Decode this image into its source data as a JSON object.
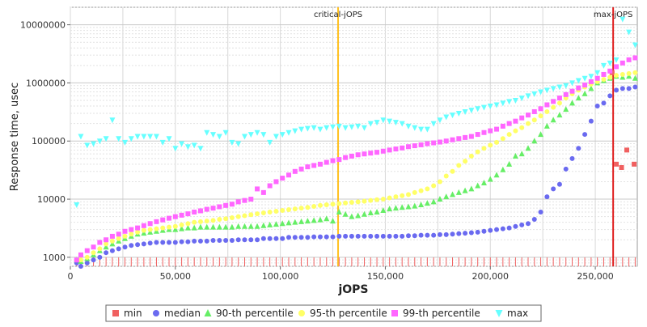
{
  "chart_data": {
    "type": "scatter",
    "title": "",
    "xlabel": "jOPS",
    "ylabel": "Response time, usec",
    "xlim": [
      0,
      270000
    ],
    "ylim": [
      700,
      20000000
    ],
    "yscale": "log",
    "grid": true,
    "legend_position": "bottom",
    "x_ticks": [
      0,
      50000,
      100000,
      150000,
      200000,
      250000
    ],
    "x_tick_labels": [
      "0",
      "50,000",
      "100,000",
      "150,000",
      "200,000",
      "250,000"
    ],
    "y_ticks": [
      1000,
      10000,
      100000,
      1000000,
      10000000
    ],
    "y_tick_labels": [
      "1000",
      "10000",
      "100000",
      "1000000",
      "10000000"
    ],
    "markers": [
      {
        "label": "critical-jOPS",
        "x": 127500,
        "color": "#ffc020"
      },
      {
        "label": "max-jOPS",
        "x": 258500,
        "color": "#e02020"
      }
    ],
    "series": [
      {
        "name": "min",
        "color": "#f06060",
        "symbol": "square",
        "x": [
          258000,
          260000,
          262500,
          265000,
          268500
        ],
        "y": [
          1500000,
          40000,
          35000,
          70000,
          40000
        ]
      },
      {
        "name": "median",
        "color": "#6a6af0",
        "symbol": "circle",
        "x": [
          3000,
          5000,
          8000,
          11000,
          14000,
          17000,
          20000,
          23000,
          26000,
          29000,
          32000,
          35000,
          38000,
          41000,
          44000,
          47000,
          50000,
          53000,
          56000,
          59000,
          62000,
          65000,
          68000,
          71000,
          74000,
          77000,
          80000,
          83000,
          86000,
          89000,
          92000,
          95000,
          98000,
          101000,
          104000,
          107000,
          110000,
          113000,
          116000,
          119000,
          122000,
          125000,
          128000,
          131000,
          134000,
          137000,
          140000,
          143000,
          146000,
          149000,
          152000,
          155000,
          158000,
          161000,
          164000,
          167000,
          170000,
          173000,
          176000,
          179000,
          182000,
          185000,
          188000,
          191000,
          194000,
          197000,
          200000,
          203000,
          206000,
          209000,
          212000,
          215000,
          218000,
          221000,
          224000,
          227000,
          230000,
          233000,
          236000,
          239000,
          242000,
          245000,
          248000,
          251000,
          254000,
          257000,
          260000,
          263000,
          266000,
          269000
        ],
        "y": [
          800,
          700,
          800,
          900,
          1000,
          1200,
          1300,
          1400,
          1500,
          1600,
          1650,
          1700,
          1750,
          1800,
          1800,
          1800,
          1800,
          1850,
          1850,
          1900,
          1900,
          1900,
          1950,
          1950,
          1950,
          1950,
          2000,
          2000,
          2000,
          2000,
          2100,
          2100,
          2100,
          2100,
          2200,
          2200,
          2200,
          2200,
          2250,
          2250,
          2250,
          2250,
          2300,
          2300,
          2300,
          2300,
          2300,
          2300,
          2300,
          2300,
          2300,
          2300,
          2300,
          2350,
          2350,
          2400,
          2400,
          2400,
          2450,
          2450,
          2500,
          2550,
          2600,
          2650,
          2700,
          2800,
          2900,
          3000,
          3100,
          3200,
          3400,
          3600,
          3800,
          4500,
          6000,
          11000,
          15000,
          18000,
          33000,
          50000,
          75000,
          130000,
          220000,
          400000,
          450000,
          600000,
          750000,
          800000,
          800000,
          850000
        ]
      },
      {
        "name": "90-th percentile",
        "color": "#66ee66",
        "symbol": "triangle-up",
        "x": [
          3000,
          5000,
          8000,
          11000,
          14000,
          17000,
          20000,
          23000,
          26000,
          29000,
          32000,
          35000,
          38000,
          41000,
          44000,
          47000,
          50000,
          53000,
          56000,
          59000,
          62000,
          65000,
          68000,
          71000,
          74000,
          77000,
          80000,
          83000,
          86000,
          89000,
          92000,
          95000,
          98000,
          101000,
          104000,
          107000,
          110000,
          113000,
          116000,
          119000,
          122000,
          125000,
          128000,
          131000,
          134000,
          137000,
          140000,
          143000,
          146000,
          149000,
          152000,
          155000,
          158000,
          161000,
          164000,
          167000,
          170000,
          173000,
          176000,
          179000,
          182000,
          185000,
          188000,
          191000,
          194000,
          197000,
          200000,
          203000,
          206000,
          209000,
          212000,
          215000,
          218000,
          221000,
          224000,
          227000,
          230000,
          233000,
          236000,
          239000,
          242000,
          245000,
          248000,
          251000,
          254000,
          257000,
          260000,
          263000,
          266000,
          269000
        ],
        "y": [
          900,
          850,
          950,
          1100,
          1300,
          1500,
          1700,
          1900,
          2100,
          2300,
          2500,
          2600,
          2700,
          2800,
          2900,
          3000,
          3000,
          3100,
          3200,
          3200,
          3300,
          3300,
          3300,
          3300,
          3300,
          3300,
          3400,
          3400,
          3400,
          3400,
          3500,
          3600,
          3700,
          3800,
          3900,
          4000,
          4100,
          4200,
          4300,
          4400,
          4600,
          4200,
          6000,
          5500,
          5000,
          5200,
          5500,
          5800,
          6000,
          6400,
          6800,
          7000,
          7200,
          7400,
          7600,
          8000,
          8500,
          9000,
          10000,
          11000,
          12000,
          13000,
          14000,
          15000,
          17000,
          19000,
          22000,
          26000,
          32000,
          40000,
          55000,
          60000,
          75000,
          100000,
          130000,
          180000,
          230000,
          280000,
          350000,
          450000,
          550000,
          650000,
          800000,
          1000000,
          1100000,
          1200000,
          1300000,
          1250000,
          1300000,
          1200000
        ]
      },
      {
        "name": "95-th percentile",
        "color": "#ffff66",
        "symbol": "circle",
        "x": [
          3000,
          5000,
          8000,
          11000,
          14000,
          17000,
          20000,
          23000,
          26000,
          29000,
          32000,
          35000,
          38000,
          41000,
          44000,
          47000,
          50000,
          53000,
          56000,
          59000,
          62000,
          65000,
          68000,
          71000,
          74000,
          77000,
          80000,
          83000,
          86000,
          89000,
          92000,
          95000,
          98000,
          101000,
          104000,
          107000,
          110000,
          113000,
          116000,
          119000,
          122000,
          125000,
          128000,
          131000,
          134000,
          137000,
          140000,
          143000,
          146000,
          149000,
          152000,
          155000,
          158000,
          161000,
          164000,
          167000,
          170000,
          173000,
          176000,
          179000,
          182000,
          185000,
          188000,
          191000,
          194000,
          197000,
          200000,
          203000,
          206000,
          209000,
          212000,
          215000,
          218000,
          221000,
          224000,
          227000,
          230000,
          233000,
          236000,
          239000,
          242000,
          245000,
          248000,
          251000,
          254000,
          257000,
          260000,
          263000,
          266000,
          269000
        ],
        "y": [
          900,
          900,
          1000,
          1200,
          1400,
          1700,
          1900,
          2100,
          2300,
          2500,
          2700,
          2900,
          3000,
          3100,
          3200,
          3300,
          3400,
          3600,
          3800,
          4000,
          4100,
          4200,
          4300,
          4500,
          4600,
          4800,
          5000,
          5200,
          5400,
          5600,
          5800,
          6000,
          6200,
          6400,
          6600,
          6800,
          7000,
          7200,
          7500,
          7800,
          8000,
          8200,
          8400,
          8600,
          8800,
          9000,
          9200,
          9500,
          9800,
          10000,
          10500,
          11000,
          11500,
          12000,
          13000,
          14000,
          15000,
          17000,
          20000,
          25000,
          30000,
          38000,
          45000,
          55000,
          65000,
          75000,
          85000,
          95000,
          110000,
          130000,
          150000,
          170000,
          200000,
          230000,
          270000,
          320000,
          380000,
          450000,
          550000,
          650000,
          750000,
          850000,
          950000,
          1050000,
          1150000,
          1250000,
          1350000,
          1400000,
          1450000,
          1500000
        ]
      },
      {
        "name": "99-th percentile",
        "color": "#ff66ff",
        "symbol": "square",
        "x": [
          3000,
          5000,
          8000,
          11000,
          14000,
          17000,
          20000,
          23000,
          26000,
          29000,
          32000,
          35000,
          38000,
          41000,
          44000,
          47000,
          50000,
          53000,
          56000,
          59000,
          62000,
          65000,
          68000,
          71000,
          74000,
          77000,
          80000,
          83000,
          86000,
          89000,
          92000,
          95000,
          98000,
          101000,
          104000,
          107000,
          110000,
          113000,
          116000,
          119000,
          122000,
          125000,
          128000,
          131000,
          134000,
          137000,
          140000,
          143000,
          146000,
          149000,
          152000,
          155000,
          158000,
          161000,
          164000,
          167000,
          170000,
          173000,
          176000,
          179000,
          182000,
          185000,
          188000,
          191000,
          194000,
          197000,
          200000,
          203000,
          206000,
          209000,
          212000,
          215000,
          218000,
          221000,
          224000,
          227000,
          230000,
          233000,
          236000,
          239000,
          242000,
          245000,
          248000,
          251000,
          254000,
          257000,
          260000,
          263000,
          266000,
          269000
        ],
        "y": [
          900,
          1100,
          1300,
          1500,
          1800,
          2000,
          2300,
          2500,
          2800,
          3000,
          3200,
          3500,
          3800,
          4100,
          4400,
          4700,
          5000,
          5300,
          5600,
          6000,
          6300,
          6700,
          7000,
          7400,
          7800,
          8200,
          9000,
          9500,
          10000,
          15000,
          13000,
          17000,
          20000,
          23000,
          26000,
          30000,
          33000,
          36000,
          38000,
          40000,
          43000,
          46000,
          48000,
          52000,
          55000,
          58000,
          60000,
          62000,
          64000,
          67000,
          70000,
          73000,
          76000,
          80000,
          83000,
          86000,
          90000,
          93000,
          96000,
          100000,
          105000,
          110000,
          115000,
          120000,
          130000,
          140000,
          150000,
          160000,
          180000,
          200000,
          220000,
          250000,
          280000,
          320000,
          360000,
          420000,
          480000,
          550000,
          630000,
          720000,
          820000,
          920000,
          1050000,
          1200000,
          1400000,
          1600000,
          1900000,
          2200000,
          2500000,
          2700000
        ]
      },
      {
        "name": "max",
        "color": "#66ffff",
        "symbol": "triangle-down",
        "x": [
          3000,
          5000,
          8000,
          11000,
          14000,
          17000,
          20000,
          23000,
          26000,
          29000,
          32000,
          35000,
          38000,
          41000,
          44000,
          47000,
          50000,
          53000,
          56000,
          59000,
          62000,
          65000,
          68000,
          71000,
          74000,
          77000,
          80000,
          83000,
          86000,
          89000,
          92000,
          95000,
          98000,
          101000,
          104000,
          107000,
          110000,
          113000,
          116000,
          119000,
          122000,
          125000,
          128000,
          131000,
          134000,
          137000,
          140000,
          143000,
          146000,
          149000,
          152000,
          155000,
          158000,
          161000,
          164000,
          167000,
          170000,
          173000,
          176000,
          179000,
          182000,
          185000,
          188000,
          191000,
          194000,
          197000,
          200000,
          203000,
          206000,
          209000,
          212000,
          215000,
          218000,
          221000,
          224000,
          227000,
          230000,
          233000,
          236000,
          239000,
          242000,
          245000,
          248000,
          251000,
          254000,
          257000,
          260000,
          263000,
          266000,
          269000
        ],
        "y": [
          8000,
          120000,
          85000,
          90000,
          100000,
          110000,
          230000,
          110000,
          95000,
          110000,
          120000,
          120000,
          120000,
          120000,
          95000,
          110000,
          75000,
          90000,
          80000,
          85000,
          75000,
          140000,
          130000,
          120000,
          140000,
          95000,
          90000,
          120000,
          130000,
          140000,
          130000,
          95000,
          120000,
          130000,
          140000,
          150000,
          160000,
          165000,
          170000,
          160000,
          170000,
          175000,
          180000,
          170000,
          175000,
          180000,
          170000,
          200000,
          210000,
          230000,
          220000,
          210000,
          200000,
          180000,
          170000,
          160000,
          160000,
          200000,
          230000,
          260000,
          280000,
          300000,
          320000,
          340000,
          360000,
          380000,
          400000,
          420000,
          450000,
          480000,
          500000,
          550000,
          600000,
          650000,
          700000,
          750000,
          800000,
          850000,
          900000,
          1000000,
          1100000,
          1200000,
          1300000,
          1500000,
          2000000,
          2200000,
          2500000,
          12500000,
          7500000,
          4500000
        ]
      }
    ]
  }
}
